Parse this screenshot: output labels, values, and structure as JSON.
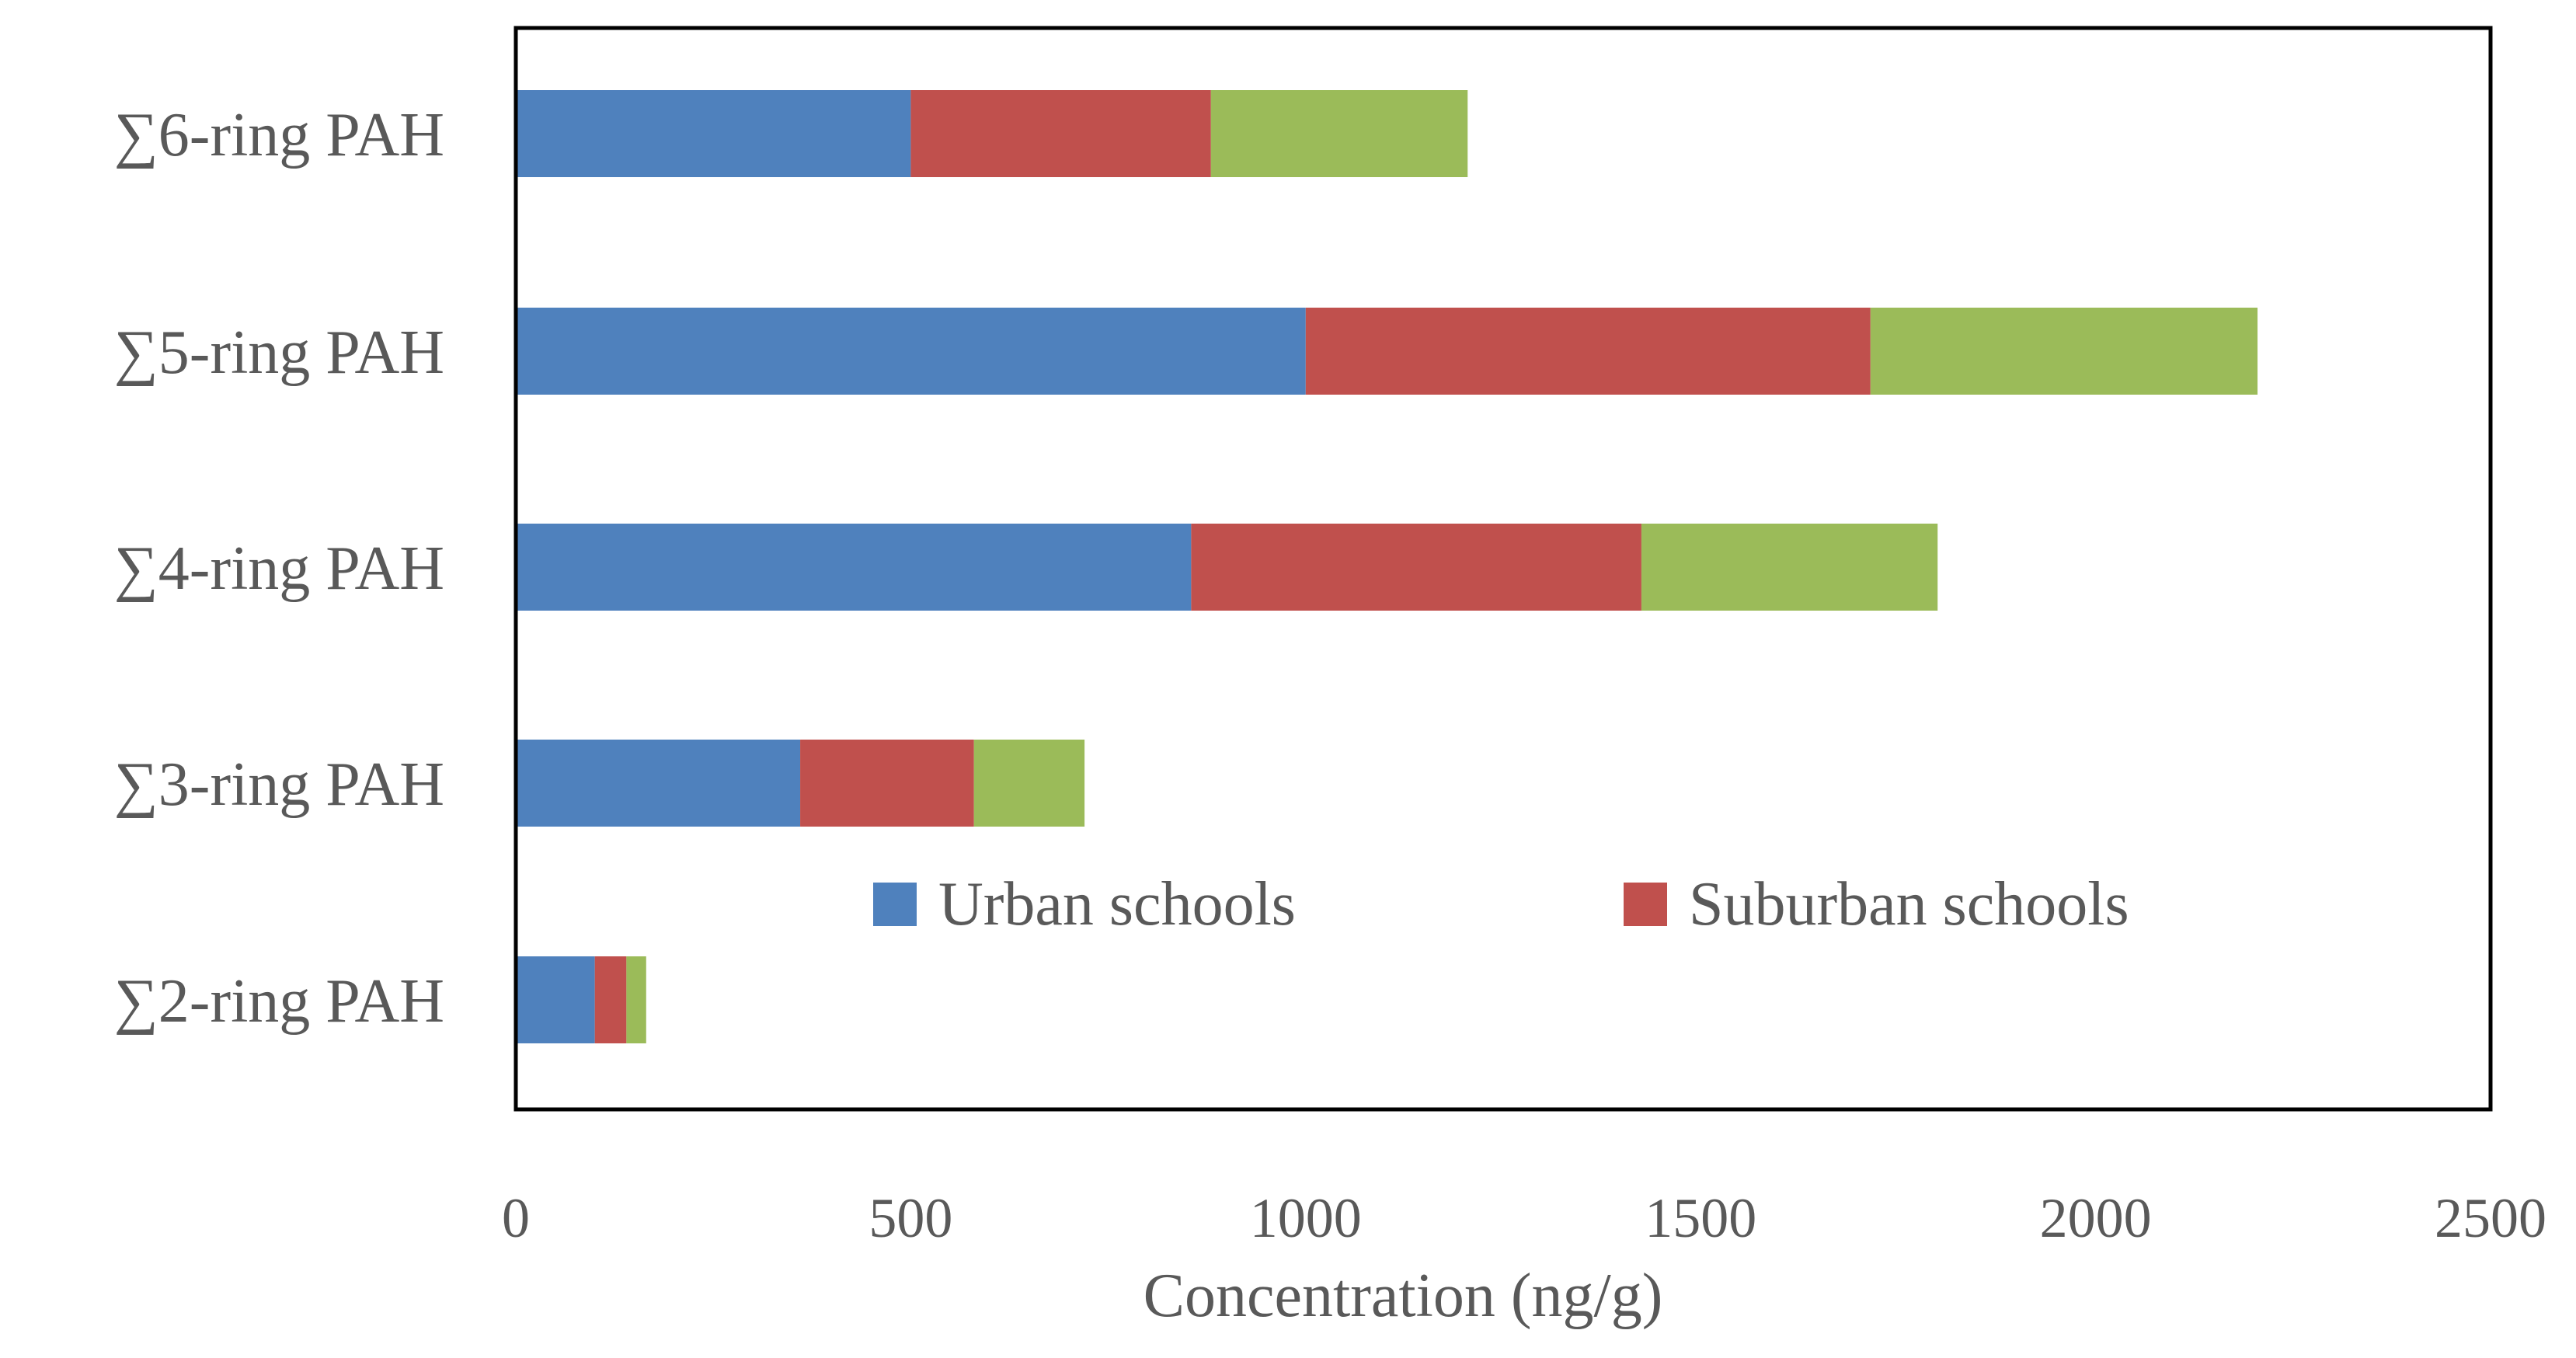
{
  "chart_data": {
    "type": "bar",
    "orientation": "horizontal",
    "stacked": true,
    "categories": [
      "∑6-ring PAH",
      "∑5-ring PAH",
      "∑4-ring PAH",
      "∑3-ring PAH",
      "∑2-ring PAH"
    ],
    "series": [
      {
        "name": "Urban schools",
        "color": "#4F81BD",
        "values": [
          500,
          1000,
          855,
          360,
          100
        ]
      },
      {
        "name": "Suburban  schools",
        "color": "#C0504D",
        "values": [
          380,
          715,
          570,
          220,
          40
        ]
      },
      {
        "name": "",
        "color": "#9BBB59",
        "values": [
          325,
          490,
          375,
          140,
          25
        ]
      }
    ],
    "title": "",
    "xlabel": "Concentration (ng/g)",
    "ylabel": "",
    "xlim": [
      0,
      2500
    ],
    "xticks": [
      "0",
      "500",
      "1000",
      "1500",
      "2000",
      "2500"
    ],
    "grid": false,
    "legend": "inside-bottom-center"
  }
}
